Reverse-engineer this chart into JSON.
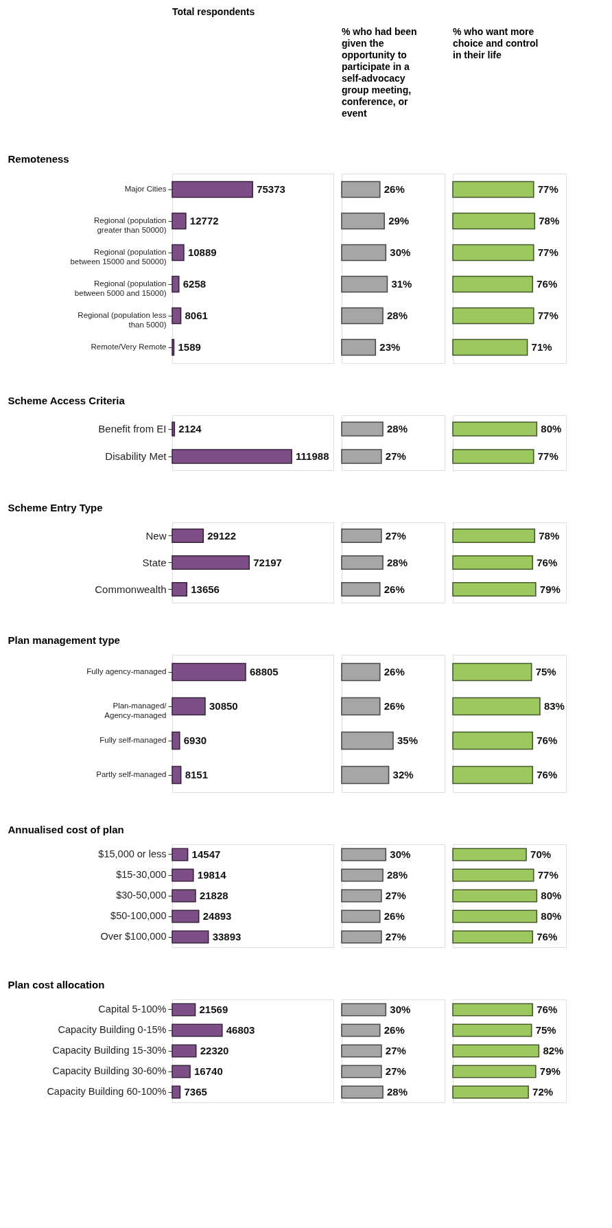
{
  "chart_data": [
    {
      "type": "bar",
      "orientation": "horizontal",
      "title": "Total respondents",
      "ylabel": "Remoteness",
      "categories": [
        "Major Cities",
        "Regional (population greater than 50000)",
        "Regional (population between 15000 and 50000)",
        "Regional (population between 5000 and 15000)",
        "Regional (population less than 5000)",
        "Remote/Very Remote"
      ],
      "values": [
        75373,
        12772,
        10889,
        6258,
        8061,
        1589
      ],
      "data_labels": true,
      "color": "#7e4f86",
      "tick_labels": "y"
    },
    {
      "type": "bar",
      "orientation": "horizontal",
      "title": "% who had been given the opportunity to participate in a self-advocacy group meeting, conference, or event",
      "categories": [
        null,
        null,
        null,
        null,
        null,
        null
      ],
      "values": [
        26,
        29,
        30,
        31,
        28,
        23
      ],
      "value_labels": [
        "26%",
        "29%",
        "30%",
        "31%",
        "28%",
        "23%"
      ],
      "color": "#a6a6a6",
      "tick_labels": false
    },
    {
      "type": "bar",
      "orientation": "horizontal",
      "title": "% who want more choice and control in their life",
      "categories": [
        null,
        null,
        null,
        null,
        null,
        null
      ],
      "values": [
        77,
        78,
        77,
        76,
        77,
        71
      ],
      "value_labels": [
        "77%",
        "78%",
        "77%",
        "76%",
        "77%",
        "71%"
      ],
      "color": "#9cc85f",
      "tick_labels": false
    },
    {
      "type": "bar",
      "orientation": "horizontal",
      "ylabel": "Scheme Access Criteria",
      "categories": [
        "Benefit from EI",
        "Disability Met"
      ],
      "values": [
        2124,
        111988
      ],
      "data_labels": true,
      "color": "#7e4f86",
      "tick_labels": "y"
    },
    {
      "type": "bar",
      "orientation": "horizontal",
      "categories": [
        null,
        null
      ],
      "values": [
        28,
        27
      ],
      "value_labels": [
        "28%",
        "27%"
      ],
      "color": "#a6a6a6",
      "tick_labels": false
    },
    {
      "type": "bar",
      "orientation": "horizontal",
      "categories": [
        null,
        null
      ],
      "values": [
        80,
        77
      ],
      "value_labels": [
        "80%",
        "77%"
      ],
      "color": "#9cc85f",
      "tick_labels": false
    },
    {
      "type": "bar",
      "orientation": "horizontal",
      "ylabel": "Scheme Entry Type",
      "categories": [
        "New",
        "State",
        "Commonwealth"
      ],
      "values": [
        29122,
        72197,
        13656
      ],
      "data_labels": true,
      "color": "#7e4f86",
      "tick_labels": "y"
    },
    {
      "type": "bar",
      "orientation": "horizontal",
      "categories": [
        null,
        null,
        null
      ],
      "values": [
        27,
        28,
        26
      ],
      "value_labels": [
        "27%",
        "28%",
        "26%"
      ],
      "color": "#a6a6a6",
      "tick_labels": false
    },
    {
      "type": "bar",
      "orientation": "horizontal",
      "categories": [
        null,
        null,
        null
      ],
      "values": [
        78,
        76,
        79
      ],
      "value_labels": [
        "78%",
        "76%",
        "79%"
      ],
      "color": "#9cc85f",
      "tick_labels": false
    },
    {
      "type": "bar",
      "orientation": "horizontal",
      "ylabel": "Plan management type",
      "categories": [
        "Fully agency-managed",
        "Plan-managed/ Agency-managed",
        "Fully self-managed",
        "Partly self-managed"
      ],
      "values": [
        68805,
        30850,
        6930,
        8151
      ],
      "data_labels": true,
      "color": "#7e4f86",
      "tick_labels": "y"
    },
    {
      "type": "bar",
      "orientation": "horizontal",
      "categories": [
        null,
        null,
        null,
        null
      ],
      "values": [
        26,
        26,
        35,
        32
      ],
      "value_labels": [
        "26%",
        "26%",
        "35%",
        "32%"
      ],
      "color": "#a6a6a6",
      "tick_labels": false
    },
    {
      "type": "bar",
      "orientation": "horizontal",
      "categories": [
        null,
        null,
        null,
        null
      ],
      "values": [
        75,
        83,
        76,
        76
      ],
      "value_labels": [
        "75%",
        "83%",
        "76%",
        "76%"
      ],
      "color": "#9cc85f",
      "tick_labels": false
    },
    {
      "type": "bar",
      "orientation": "horizontal",
      "ylabel": "Annualised cost of plan",
      "categories": [
        "$15,000 or less",
        "$15-30,000",
        "$30-50,000",
        "$50-100,000",
        "Over $100,000"
      ],
      "values": [
        14547,
        19814,
        21828,
        24893,
        33893
      ],
      "data_labels": true,
      "color": "#7e4f86",
      "tick_labels": "y"
    },
    {
      "type": "bar",
      "orientation": "horizontal",
      "categories": [
        null,
        null,
        null,
        null,
        null
      ],
      "values": [
        30,
        28,
        27,
        26,
        27
      ],
      "value_labels": [
        "30%",
        "28%",
        "27%",
        "26%",
        "27%"
      ],
      "color": "#a6a6a6",
      "tick_labels": false
    },
    {
      "type": "bar",
      "orientation": "horizontal",
      "categories": [
        null,
        null,
        null,
        null,
        null
      ],
      "values": [
        70,
        77,
        80,
        80,
        76
      ],
      "value_labels": [
        "70%",
        "77%",
        "80%",
        "80%",
        "76%"
      ],
      "color": "#9cc85f",
      "tick_labels": false
    },
    {
      "type": "bar",
      "orientation": "horizontal",
      "ylabel": "Plan cost allocation",
      "categories": [
        "Capital 5-100%",
        "Capacity Building 0-15%",
        "Capacity Building 15-30%",
        "Capacity Building 30-60%",
        "Capacity Building 60-100%"
      ],
      "values": [
        21569,
        46803,
        22320,
        16740,
        7365
      ],
      "data_labels": true,
      "color": "#7e4f86",
      "tick_labels": "y"
    },
    {
      "type": "bar",
      "orientation": "horizontal",
      "categories": [
        null,
        null,
        null,
        null,
        null
      ],
      "values": [
        30,
        26,
        27,
        27,
        28
      ],
      "value_labels": [
        "30%",
        "26%",
        "27%",
        "27%",
        "28%"
      ],
      "color": "#a6a6a6",
      "tick_labels": false
    },
    {
      "type": "bar",
      "orientation": "horizontal",
      "categories": [
        null,
        null,
        null,
        null,
        null
      ],
      "values": [
        76,
        75,
        82,
        79,
        72
      ],
      "value_labels": [
        "76%",
        "75%",
        "82%",
        "79%",
        "72%"
      ],
      "color": "#9cc85f",
      "tick_labels": false
    }
  ]
}
